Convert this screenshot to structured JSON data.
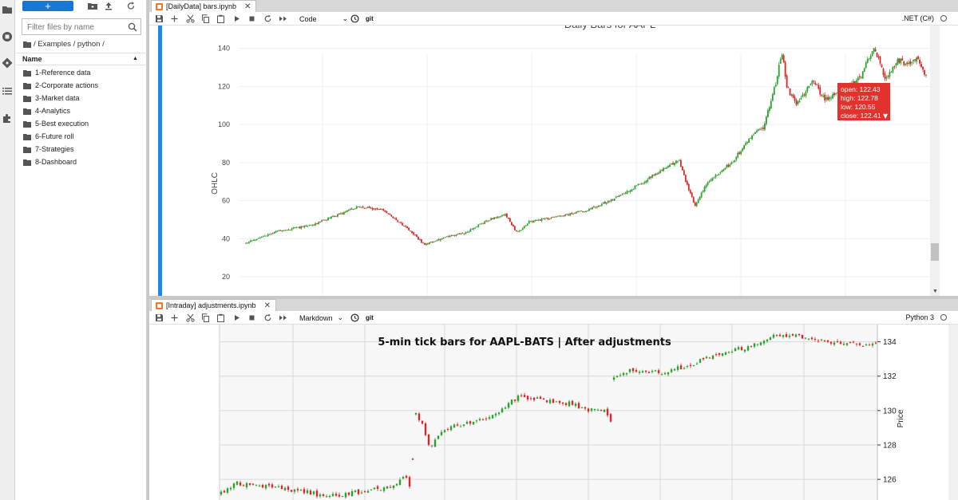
{
  "sidebar": {
    "icons": [
      "folder-icon",
      "running-icon",
      "git-icon",
      "toc-icon",
      "extension-icon"
    ]
  },
  "filebrowser": {
    "new_label": "+",
    "filter_placeholder": "Filter files by name",
    "breadcrumb": "/ Examples / python /",
    "column_name": "Name",
    "items": [
      {
        "label": "1-Reference data"
      },
      {
        "label": "2-Corporate actions"
      },
      {
        "label": "3-Market data"
      },
      {
        "label": "4-Analytics"
      },
      {
        "label": "5-Best execution"
      },
      {
        "label": "6-Future roll"
      },
      {
        "label": "7-Strategies"
      },
      {
        "label": "8-Dashboard"
      }
    ]
  },
  "panels": [
    {
      "tab_title": "[DailyData] bars.ipynb",
      "cell_type": "Code",
      "git_label": "git",
      "kernel": ".NET (C#)"
    },
    {
      "tab_title": "[Intraday] adjustments.ipynb",
      "cell_type": "Markdown",
      "git_label": "git",
      "kernel": "Python 3"
    }
  ],
  "chart_data": [
    {
      "type": "candlestick",
      "title": "Daily Bars for AAPL",
      "xlabel": "",
      "ylabel": "OHLC",
      "yticks": [
        20,
        40,
        60,
        80,
        100,
        120,
        140
      ],
      "ylim": [
        10,
        152
      ],
      "grid": true,
      "colors": {
        "up": "#2ca02c",
        "down": "#d62728"
      },
      "anchors": [
        [
          0,
          38
        ],
        [
          40,
          44
        ],
        [
          80,
          47
        ],
        [
          110,
          52
        ],
        [
          140,
          57
        ],
        [
          170,
          55
        ],
        [
          200,
          45
        ],
        [
          220,
          37
        ],
        [
          240,
          40
        ],
        [
          270,
          43
        ],
        [
          300,
          50
        ],
        [
          320,
          53
        ],
        [
          335,
          43
        ],
        [
          350,
          49
        ],
        [
          380,
          51
        ],
        [
          420,
          55
        ],
        [
          450,
          60
        ],
        [
          480,
          67
        ],
        [
          520,
          78
        ],
        [
          535,
          81
        ],
        [
          545,
          68
        ],
        [
          555,
          57
        ],
        [
          570,
          70
        ],
        [
          600,
          80
        ],
        [
          630,
          97
        ],
        [
          640,
          99
        ],
        [
          655,
          123
        ],
        [
          662,
          138
        ],
        [
          668,
          120
        ],
        [
          680,
          110
        ],
        [
          700,
          123
        ],
        [
          715,
          113
        ],
        [
          735,
          118
        ],
        [
          760,
          125
        ],
        [
          775,
          141
        ],
        [
          790,
          124
        ],
        [
          805,
          134
        ],
        [
          820,
          131
        ],
        [
          830,
          135
        ],
        [
          840,
          125
        ]
      ],
      "tooltip": {
        "open": "open: 122.43",
        "high": "high: 122.78",
        "low": "low: 120.55",
        "close": "close: 122.41"
      }
    },
    {
      "type": "candlestick",
      "title": "5-min tick bars for AAPL-BATS | After adjustments",
      "ylabel": "Price",
      "yticks": [
        126,
        128,
        130,
        132,
        134
      ],
      "ylim": [
        124.8,
        135.0
      ],
      "grid": true,
      "colors": {
        "up": "#2ca02c",
        "down": "#d62728"
      },
      "anchors": [
        [
          0,
          125.2
        ],
        [
          8,
          125.8
        ],
        [
          20,
          125.6
        ],
        [
          40,
          125.4
        ],
        [
          60,
          125.0
        ],
        [
          80,
          125.3
        ],
        [
          95,
          125.6
        ],
        [
          103,
          126.2
        ],
        [
          106,
          125.4
        ],
        [
          108,
          129.9
        ],
        [
          112,
          129.2
        ],
        [
          116,
          127.8
        ],
        [
          125,
          129.0
        ],
        [
          140,
          129.3
        ],
        [
          155,
          129.9
        ],
        [
          165,
          130.8
        ],
        [
          180,
          130.6
        ],
        [
          195,
          130.4
        ],
        [
          205,
          130.0
        ],
        [
          215,
          130.0
        ],
        [
          217,
          128.8
        ],
        [
          218,
          131.8
        ],
        [
          228,
          132.3
        ],
        [
          245,
          132.2
        ],
        [
          262,
          132.7
        ],
        [
          280,
          133.4
        ],
        [
          295,
          133.7
        ],
        [
          310,
          134.4
        ],
        [
          320,
          134.3
        ],
        [
          330,
          134.2
        ],
        [
          345,
          133.9
        ],
        [
          360,
          133.8
        ],
        [
          365,
          133.9
        ]
      ]
    }
  ]
}
